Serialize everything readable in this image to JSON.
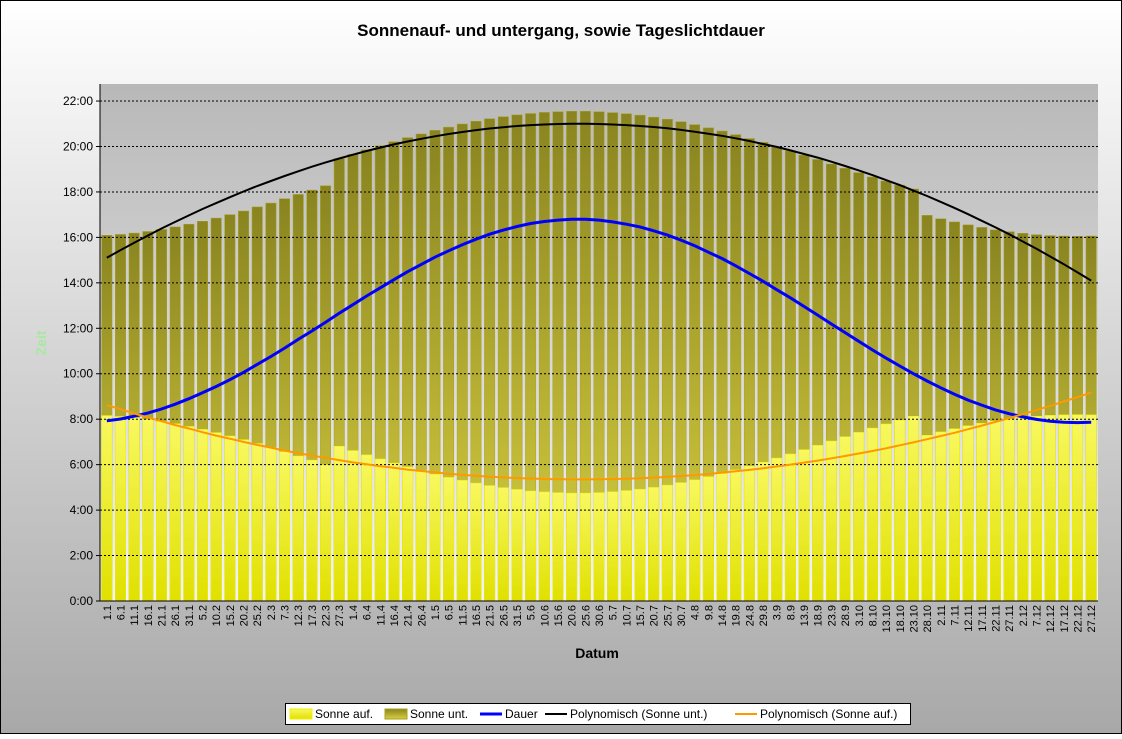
{
  "chart_data": {
    "type": "bar",
    "title": "Sonnenauf- und untergang, sowie Tageslichtdauer",
    "x_label": "Datum",
    "y_label": "Zeit",
    "categories": [
      "1.1",
      "6.1",
      "11.1",
      "16.1",
      "21.1",
      "26.1",
      "31.1",
      "5.2",
      "10.2",
      "15.2",
      "20.2",
      "25.2",
      "2.3",
      "7.3",
      "12.3",
      "17.3",
      "22.3",
      "27.3",
      "1.4",
      "6.4",
      "11.4",
      "16.4",
      "21.4",
      "26.4",
      "1.5",
      "6.5",
      "11.5",
      "16.5",
      "21.5",
      "26.5",
      "31.5",
      "5.6",
      "10.6",
      "15.6",
      "20.6",
      "25.6",
      "30.6",
      "5.7",
      "10.7",
      "15.7",
      "20.7",
      "25.7",
      "30.7",
      "4.8",
      "9.8",
      "14.8",
      "19.8",
      "24.8",
      "29.8",
      "3.9",
      "8.9",
      "13.9",
      "18.9",
      "23.9",
      "28.9",
      "3.10",
      "8.10",
      "13.10",
      "18.10",
      "23.10",
      "28.10",
      "2.11",
      "7.11",
      "12.11",
      "17.11",
      "22.11",
      "27.11",
      "2.12",
      "7.12",
      "12.12",
      "17.12",
      "22.12",
      "27.12"
    ],
    "ylim": [
      0,
      22.75
    ],
    "yticks": [
      {
        "value": 0,
        "label": "0:00"
      },
      {
        "value": 2,
        "label": "2:00"
      },
      {
        "value": 4,
        "label": "4:00"
      },
      {
        "value": 6,
        "label": "6:00"
      },
      {
        "value": 8,
        "label": "8:00"
      },
      {
        "value": 10,
        "label": "10:00"
      },
      {
        "value": 12,
        "label": "12:00"
      },
      {
        "value": 14,
        "label": "14:00"
      },
      {
        "value": 16,
        "label": "16:00"
      },
      {
        "value": 18,
        "label": "18:00"
      },
      {
        "value": 20,
        "label": "20:00"
      },
      {
        "value": 22,
        "label": "22:00"
      }
    ],
    "grid": true,
    "series": [
      {
        "name": "Sonne unt.",
        "type": "bar",
        "color": "#a8a020",
        "values": [
          16.09,
          16.13,
          16.19,
          16.26,
          16.35,
          16.46,
          16.58,
          16.71,
          16.85,
          17.0,
          17.16,
          17.34,
          17.51,
          17.7,
          17.89,
          18.08,
          18.27,
          19.47,
          19.66,
          19.85,
          20.03,
          20.21,
          20.39,
          20.55,
          20.71,
          20.85,
          20.99,
          21.11,
          21.22,
          21.31,
          21.39,
          21.45,
          21.5,
          21.53,
          21.55,
          21.55,
          21.53,
          21.49,
          21.44,
          21.38,
          21.29,
          21.2,
          21.09,
          20.96,
          20.82,
          20.68,
          20.52,
          20.35,
          20.18,
          19.99,
          19.81,
          19.62,
          19.43,
          19.23,
          19.04,
          18.85,
          18.66,
          18.48,
          18.3,
          18.13,
          16.97,
          16.82,
          16.68,
          16.55,
          16.44,
          16.33,
          16.25,
          16.18,
          16.12,
          16.08,
          16.06,
          16.05,
          16.06
        ]
      },
      {
        "name": "Sonne auf.",
        "type": "bar",
        "color": "#f0f000",
        "values": [
          8.16,
          8.12,
          8.06,
          7.99,
          7.9,
          7.8,
          7.68,
          7.55,
          7.41,
          7.26,
          7.1,
          6.93,
          6.75,
          6.57,
          6.38,
          6.2,
          6.0,
          6.81,
          6.62,
          6.43,
          6.25,
          6.07,
          5.9,
          5.74,
          5.58,
          5.44,
          5.31,
          5.19,
          5.08,
          4.99,
          4.91,
          4.84,
          4.8,
          4.77,
          4.75,
          4.75,
          4.77,
          4.81,
          4.86,
          4.92,
          5.0,
          5.1,
          5.21,
          5.33,
          5.47,
          5.61,
          5.77,
          5.94,
          6.11,
          6.29,
          6.47,
          6.66,
          6.85,
          7.04,
          7.23,
          7.42,
          7.61,
          7.79,
          7.96,
          8.13,
          7.29,
          7.44,
          7.58,
          7.71,
          7.82,
          7.92,
          8.01,
          8.08,
          8.13,
          8.17,
          8.19,
          8.2,
          8.19
        ]
      },
      {
        "name": "Dauer",
        "type": "line",
        "color": "#0000ff",
        "values": [
          7.93,
          8.01,
          8.13,
          8.27,
          8.45,
          8.66,
          8.9,
          9.16,
          9.44,
          9.74,
          10.06,
          10.41,
          10.76,
          11.13,
          11.51,
          11.88,
          12.27,
          12.66,
          13.04,
          13.42,
          13.78,
          14.14,
          14.49,
          14.81,
          15.13,
          15.41,
          15.68,
          15.92,
          16.14,
          16.32,
          16.48,
          16.61,
          16.7,
          16.76,
          16.8,
          16.8,
          16.76,
          16.68,
          16.58,
          16.46,
          16.29,
          16.1,
          15.88,
          15.63,
          15.35,
          15.07,
          14.75,
          14.41,
          14.07,
          13.7,
          13.34,
          12.96,
          12.58,
          12.19,
          11.81,
          11.43,
          11.05,
          10.69,
          10.34,
          10.0,
          9.68,
          9.38,
          9.1,
          8.84,
          8.62,
          8.41,
          8.24,
          8.1,
          7.99,
          7.91,
          7.87,
          7.85,
          7.87
        ]
      },
      {
        "name": "Polynomisch (Sonne unt.)",
        "type": "line",
        "color": "#000000",
        "values": [
          15.1,
          15.44,
          15.76,
          16.08,
          16.39,
          16.68,
          16.97,
          17.25,
          17.51,
          17.77,
          18.02,
          18.26,
          18.48,
          18.7,
          18.91,
          19.11,
          19.3,
          19.47,
          19.64,
          19.8,
          19.95,
          20.09,
          20.22,
          20.34,
          20.45,
          20.55,
          20.64,
          20.72,
          20.79,
          20.85,
          20.9,
          20.94,
          20.97,
          20.99,
          21.0,
          21.0,
          20.99,
          20.97,
          20.94,
          20.9,
          20.86,
          20.8,
          20.73,
          20.65,
          20.56,
          20.47,
          20.36,
          20.24,
          20.11,
          19.98,
          19.83,
          19.67,
          19.51,
          19.33,
          19.14,
          18.95,
          18.74,
          18.52,
          18.3,
          18.06,
          17.82,
          17.56,
          17.3,
          17.02,
          16.73,
          16.44,
          16.14,
          15.82,
          15.5,
          15.16,
          14.82,
          14.46,
          14.1
        ]
      },
      {
        "name": "Polynomisch (Sonne auf.)",
        "type": "line",
        "color": "#ff9900",
        "values": [
          8.62,
          8.44,
          8.25,
          8.08,
          7.91,
          7.74,
          7.59,
          7.43,
          7.28,
          7.14,
          7.0,
          6.87,
          6.75,
          6.62,
          6.51,
          6.4,
          6.3,
          6.2,
          6.1,
          6.02,
          5.93,
          5.86,
          5.78,
          5.72,
          5.66,
          5.6,
          5.55,
          5.51,
          5.47,
          5.44,
          5.41,
          5.39,
          5.37,
          5.36,
          5.35,
          5.35,
          5.36,
          5.37,
          5.38,
          5.4,
          5.43,
          5.46,
          5.5,
          5.54,
          5.59,
          5.65,
          5.71,
          5.77,
          5.84,
          5.92,
          6.0,
          6.09,
          6.18,
          6.28,
          6.38,
          6.49,
          6.6,
          6.72,
          6.85,
          6.98,
          7.12,
          7.26,
          7.4,
          7.56,
          7.72,
          7.88,
          8.05,
          8.22,
          8.4,
          8.59,
          8.78,
          8.97,
          9.18
        ]
      }
    ]
  }
}
